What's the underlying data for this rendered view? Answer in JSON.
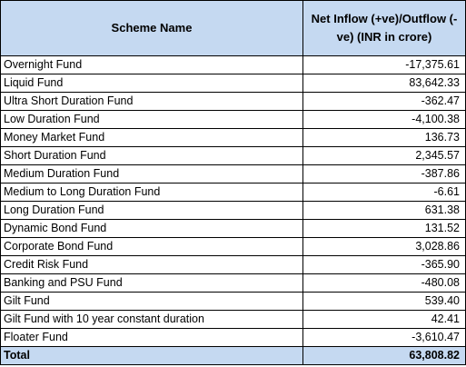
{
  "table": {
    "headers": {
      "scheme_name": "Scheme Name",
      "net_flow": "Net Inflow (+ve)/Outflow (-ve) (INR in crore)"
    },
    "rows": [
      {
        "name": "Overnight Fund",
        "value": "-17,375.61"
      },
      {
        "name": "Liquid Fund",
        "value": "83,642.33"
      },
      {
        "name": "Ultra Short Duration Fund",
        "value": "-362.47"
      },
      {
        "name": "Low Duration Fund",
        "value": "-4,100.38"
      },
      {
        "name": "Money Market Fund",
        "value": "136.73"
      },
      {
        "name": "Short Duration Fund",
        "value": "2,345.57"
      },
      {
        "name": "Medium Duration Fund",
        "value": "-387.86"
      },
      {
        "name": "Medium to Long Duration Fund",
        "value": "-6.61"
      },
      {
        "name": "Long Duration Fund",
        "value": "631.38"
      },
      {
        "name": "Dynamic Bond Fund",
        "value": "131.52"
      },
      {
        "name": "Corporate Bond Fund",
        "value": "3,028.86"
      },
      {
        "name": "Credit Risk Fund",
        "value": "-365.90"
      },
      {
        "name": "Banking and PSU Fund",
        "value": "-480.08"
      },
      {
        "name": "Gilt Fund",
        "value": "539.40"
      },
      {
        "name": "Gilt Fund with 10 year constant duration",
        "value": "42.41"
      },
      {
        "name": "Floater Fund",
        "value": "-3,610.47"
      }
    ],
    "total": {
      "name": "Total",
      "value": "63,808.82"
    }
  },
  "colors": {
    "header_fill": "#c5d9f1",
    "border": "#000000"
  }
}
